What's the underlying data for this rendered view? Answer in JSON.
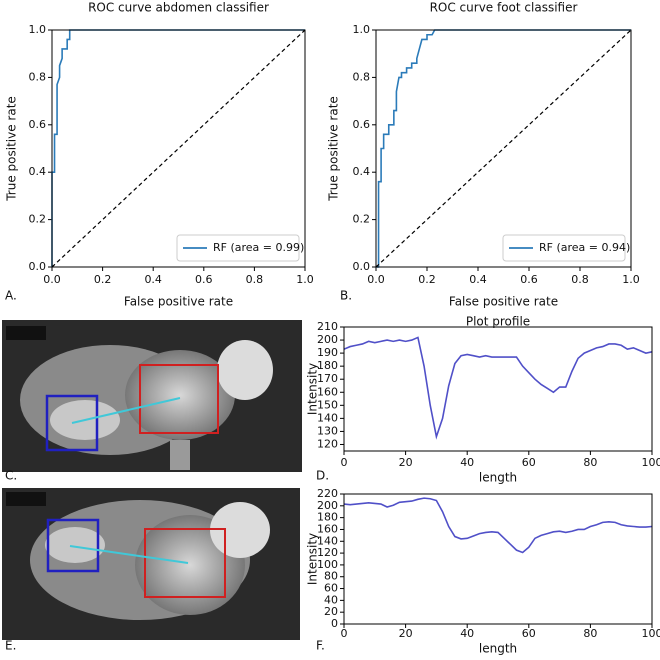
{
  "chart_data": [
    {
      "type": "line",
      "panel_label": "A.",
      "title": "ROC curve abdomen classifier",
      "x_label": "False positive rate",
      "y_label": "True positive rate",
      "xlim": [
        0,
        1
      ],
      "ylim": [
        0,
        1
      ],
      "xticks": [
        {
          "value": 0,
          "label": "0.0"
        },
        0.2,
        0.4,
        0.6,
        0.8,
        {
          "value": 1,
          "label": "1.0"
        }
      ],
      "yticks": [
        {
          "value": 0,
          "label": "0.0"
        },
        0.2,
        0.4,
        0.6,
        0.8,
        {
          "value": 1,
          "label": "1.0"
        }
      ],
      "legend": "lower right",
      "series": [
        {
          "name": "RF (area = 0.99)",
          "color": "#2b7bb9",
          "x": [
            0,
            0,
            0.01,
            0.01,
            0.02,
            0.02,
            0.03,
            0.03,
            0.04,
            0.04,
            0.06,
            0.06,
            0.07,
            0.07,
            1
          ],
          "values": [
            0,
            0.4,
            0.4,
            0.56,
            0.56,
            0.77,
            0.8,
            0.85,
            0.88,
            0.92,
            0.92,
            0.96,
            0.96,
            1,
            1
          ]
        },
        {
          "color": "#000000",
          "style": "dashed",
          "x": [
            0,
            1
          ],
          "values": [
            0,
            1
          ]
        }
      ]
    },
    {
      "type": "line",
      "panel_label": "B.",
      "title": "ROC curve foot classifier",
      "x_label": "False positive rate",
      "y_label": "True positive rate",
      "xlim": [
        0,
        1
      ],
      "ylim": [
        0,
        1
      ],
      "xticks": [
        {
          "value": 0,
          "label": "0.0"
        },
        0.2,
        0.4,
        0.6,
        0.8,
        {
          "value": 1,
          "label": "1.0"
        }
      ],
      "yticks": [
        {
          "value": 0,
          "label": "0.0"
        },
        0.2,
        0.4,
        0.6,
        0.8,
        {
          "value": 1,
          "label": "1.0"
        }
      ],
      "legend": "lower right",
      "series": [
        {
          "name": "RF (area = 0.94)",
          "color": "#2b7bb9",
          "x": [
            0,
            0.01,
            0.01,
            0.02,
            0.02,
            0.03,
            0.03,
            0.05,
            0.05,
            0.07,
            0.07,
            0.08,
            0.08,
            0.09,
            0.1,
            0.1,
            0.12,
            0.12,
            0.14,
            0.14,
            0.16,
            0.16,
            0.17,
            0.18,
            0.2,
            0.2,
            0.22,
            0.23,
            1
          ],
          "values": [
            0,
            0,
            0.36,
            0.36,
            0.5,
            0.5,
            0.56,
            0.56,
            0.6,
            0.6,
            0.66,
            0.66,
            0.74,
            0.8,
            0.8,
            0.82,
            0.82,
            0.84,
            0.84,
            0.86,
            0.86,
            0.88,
            0.92,
            0.96,
            0.96,
            0.98,
            0.98,
            1,
            1
          ]
        },
        {
          "color": "#000000",
          "style": "dashed",
          "x": [
            0,
            1
          ],
          "values": [
            0,
            1
          ]
        }
      ]
    },
    {
      "type": "line",
      "panel_label": "D.",
      "title": "Plot profile",
      "x_label": "length",
      "y_label": "Intensity",
      "xlim": [
        0,
        100
      ],
      "ylim": [
        115,
        210
      ],
      "xticks": [
        0,
        20,
        40,
        60,
        80,
        100
      ],
      "yticks": [
        120,
        130,
        140,
        150,
        160,
        170,
        180,
        190,
        200,
        210
      ],
      "series": [
        {
          "color": "#5050c8",
          "x": [
            0,
            2,
            4,
            6,
            8,
            10,
            12,
            14,
            16,
            18,
            20,
            22,
            24,
            26,
            28,
            30,
            32,
            34,
            36,
            38,
            40,
            42,
            44,
            46,
            48,
            50,
            52,
            54,
            56,
            58,
            60,
            62,
            64,
            66,
            68,
            70,
            72,
            74,
            76,
            78,
            80,
            82,
            84,
            86,
            88,
            90,
            92,
            94,
            96,
            98,
            100
          ],
          "values": [
            193,
            195,
            196,
            197,
            199,
            198,
            199,
            200,
            199,
            200,
            199,
            200,
            202,
            180,
            150,
            126,
            140,
            165,
            182,
            188,
            189,
            188,
            187,
            188,
            187,
            187,
            187,
            187,
            187,
            180,
            175,
            170,
            166,
            163,
            160,
            164,
            164,
            176,
            186,
            190,
            192,
            194,
            195,
            197,
            197,
            196,
            193,
            194,
            192,
            190,
            191
          ]
        }
      ]
    },
    {
      "type": "line",
      "panel_label": "F.",
      "x_label": "length",
      "y_label": "Intensity",
      "xlim": [
        0,
        100
      ],
      "ylim": [
        0,
        220
      ],
      "xticks": [
        0,
        20,
        40,
        60,
        80,
        100
      ],
      "yticks": [
        0,
        20,
        40,
        60,
        80,
        100,
        120,
        140,
        160,
        180,
        200,
        220
      ],
      "series": [
        {
          "color": "#5050c8",
          "x": [
            0,
            2,
            4,
            6,
            8,
            10,
            12,
            14,
            16,
            18,
            20,
            22,
            24,
            26,
            28,
            30,
            32,
            34,
            36,
            38,
            40,
            42,
            44,
            46,
            48,
            50,
            52,
            54,
            56,
            58,
            60,
            62,
            64,
            66,
            68,
            70,
            72,
            74,
            76,
            78,
            80,
            82,
            84,
            86,
            88,
            90,
            92,
            94,
            96,
            98,
            100
          ],
          "values": [
            203,
            202,
            203,
            204,
            205,
            204,
            203,
            198,
            201,
            206,
            207,
            208,
            211,
            213,
            212,
            209,
            190,
            165,
            148,
            144,
            145,
            149,
            153,
            155,
            156,
            155,
            145,
            135,
            125,
            121,
            130,
            145,
            150,
            153,
            156,
            157,
            155,
            157,
            160,
            160,
            165,
            168,
            172,
            173,
            172,
            168,
            166,
            165,
            164,
            164,
            165
          ]
        }
      ]
    }
  ],
  "images": [
    {
      "label": "C."
    },
    {
      "label": "E."
    }
  ]
}
